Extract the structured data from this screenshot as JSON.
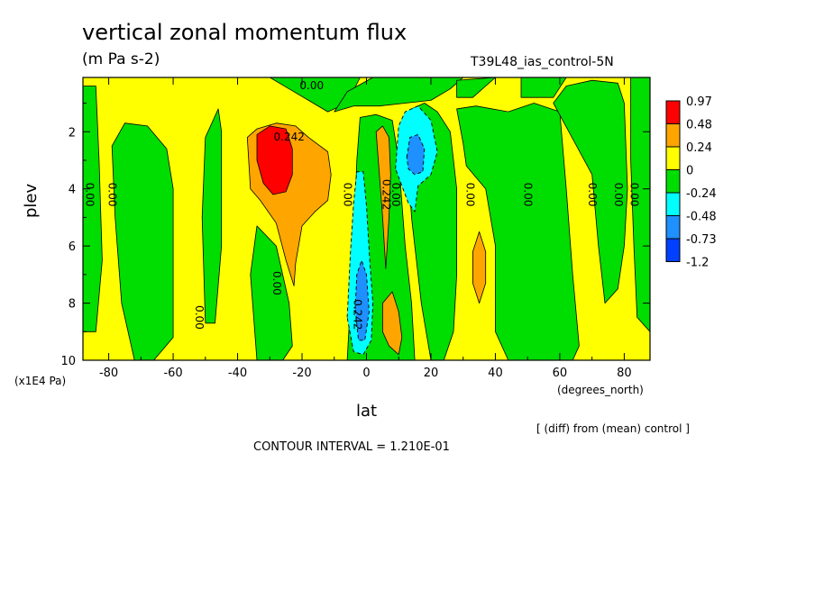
{
  "header": {
    "title": "vertical zonal momentum flux",
    "units": "(m Pa s-2)",
    "run_label": "T39L48_ias_control-5N"
  },
  "footer": {
    "note": "[ (diff) from (mean) control ]",
    "contour_interval": "CONTOUR INTERVAL = 1.210E-01"
  },
  "chart_data": {
    "type": "heatmap",
    "title": "vertical zonal momentum flux",
    "xlabel": "lat",
    "x_units": "(degrees_north)",
    "ylabel": "plev",
    "y_units": "(x1E4 Pa)",
    "xlim": [
      -88,
      88
    ],
    "ylim": [
      10,
      0.1
    ],
    "x_ticks": [
      -80,
      -60,
      -40,
      -20,
      0,
      20,
      40,
      60,
      80
    ],
    "x_tick_labels": [
      "-80",
      "-60",
      "-40",
      "-20",
      "0",
      "20",
      "40",
      "60",
      "80"
    ],
    "y_ticks": [
      2,
      4,
      6,
      8,
      10
    ],
    "y_tick_labels": [
      "2",
      "4",
      "6",
      "8",
      "10"
    ],
    "colorbar": {
      "labels": [
        "0.97",
        "0.48",
        "0.24",
        "0",
        "-0.24",
        "-0.48",
        "-0.73",
        "-1.2"
      ],
      "colors": [
        "#ff0000",
        "#ffa500",
        "#ffff00",
        "#00dd00",
        "#00ffff",
        "#1e90ff",
        "#0040ff"
      ]
    },
    "background_level_color": "#ffff00",
    "regions": [
      {
        "level": 0,
        "color": "#00dd00",
        "outline": [
          [
            -88,
            9
          ],
          [
            -84,
            9
          ],
          [
            -82,
            6.5
          ],
          [
            -83,
            3
          ],
          [
            -84,
            0.4
          ],
          [
            -88,
            0.4
          ]
        ]
      },
      {
        "level": 0,
        "color": "#00dd00",
        "outline": [
          [
            -72,
            10
          ],
          [
            -76,
            8
          ],
          [
            -78,
            5
          ],
          [
            -79,
            2.5
          ],
          [
            -75,
            1.7
          ],
          [
            -68,
            1.8
          ],
          [
            -62,
            2.6
          ],
          [
            -60,
            4
          ],
          [
            -60,
            6
          ],
          [
            -60,
            9.2
          ],
          [
            -66,
            10
          ]
        ]
      },
      {
        "level": 0,
        "color": "#00dd00",
        "outline": [
          [
            -50,
            8.7
          ],
          [
            -51,
            5
          ],
          [
            -50,
            2.2
          ],
          [
            -46,
            1.2
          ],
          [
            -45,
            2
          ],
          [
            -45,
            6
          ],
          [
            -47,
            8.7
          ]
        ]
      },
      {
        "level": 0,
        "color": "#00dd00",
        "outline": [
          [
            -34,
            10
          ],
          [
            -36,
            7
          ],
          [
            -34,
            5.3
          ],
          [
            -28,
            6
          ],
          [
            -24,
            8
          ],
          [
            -23,
            9.5
          ],
          [
            -26,
            10
          ]
        ]
      },
      {
        "level": 0,
        "color": "#00dd00",
        "outline": [
          [
            -24,
            0.5
          ],
          [
            -18,
            0.9
          ],
          [
            -12,
            1.3
          ],
          [
            -6,
            1.0
          ],
          [
            -2,
            0.1
          ],
          [
            -30,
            0.1
          ]
        ]
      },
      {
        "level": 0,
        "color": "#00dd00",
        "outline": [
          [
            -10,
            1.3
          ],
          [
            -4,
            1.1
          ],
          [
            4,
            1.1
          ],
          [
            12,
            1.0
          ],
          [
            20,
            0.9
          ],
          [
            26,
            0.5
          ],
          [
            30,
            0.1
          ],
          [
            2,
            0.1
          ],
          [
            -6,
            0.6
          ]
        ]
      },
      {
        "level": 0,
        "color": "#00dd00",
        "outline": [
          [
            -6,
            10
          ],
          [
            -4,
            6
          ],
          [
            -3,
            3
          ],
          [
            -2,
            1.5
          ],
          [
            3,
            1.4
          ],
          [
            8,
            1.6
          ],
          [
            10,
            3
          ],
          [
            12,
            6
          ],
          [
            14,
            8
          ],
          [
            15,
            10
          ]
        ]
      },
      {
        "level": 0,
        "color": "#00dd00",
        "outline": [
          [
            12,
            1.6
          ],
          [
            14,
            1.2
          ],
          [
            18,
            1.0
          ],
          [
            22,
            1.3
          ],
          [
            26,
            2
          ],
          [
            28,
            4
          ],
          [
            28,
            7
          ],
          [
            27,
            9
          ],
          [
            24,
            10
          ],
          [
            20,
            10
          ],
          [
            17,
            8
          ],
          [
            14,
            5
          ]
        ]
      },
      {
        "level": 0,
        "color": "#00dd00",
        "outline": [
          [
            28,
            1.2
          ],
          [
            34,
            1.1
          ],
          [
            44,
            1.3
          ],
          [
            52,
            1.0
          ],
          [
            60,
            1.3
          ],
          [
            62,
            4
          ],
          [
            64,
            7
          ],
          [
            66,
            9.5
          ],
          [
            64,
            10
          ],
          [
            44,
            10
          ],
          [
            40,
            9
          ],
          [
            40,
            6
          ],
          [
            37,
            4
          ],
          [
            31,
            3.2
          ],
          [
            30,
            2.4
          ]
        ]
      },
      {
        "level": 0,
        "color": "#00dd00",
        "outline": [
          [
            28,
            0.2
          ],
          [
            40,
            0.1
          ],
          [
            33,
            0.8
          ],
          [
            28,
            0.8
          ]
        ]
      },
      {
        "level": 0,
        "color": "#00dd00",
        "outline": [
          [
            48,
            0.1
          ],
          [
            62,
            0.1
          ],
          [
            58,
            0.8
          ],
          [
            48,
            0.8
          ]
        ]
      },
      {
        "level": 0,
        "color": "#00dd00",
        "outline": [
          [
            58,
            1.0
          ],
          [
            62,
            0.4
          ],
          [
            70,
            0.2
          ],
          [
            78,
            0.3
          ],
          [
            80,
            1.0
          ],
          [
            81,
            4
          ],
          [
            80,
            6
          ],
          [
            78,
            7.5
          ],
          [
            74,
            8
          ],
          [
            72,
            6
          ],
          [
            70,
            3.5
          ]
        ]
      },
      {
        "level": 0,
        "color": "#00dd00",
        "outline": [
          [
            82,
            0.1
          ],
          [
            88,
            0.1
          ],
          [
            88,
            9
          ],
          [
            84,
            8.5
          ],
          [
            83,
            6
          ],
          [
            82,
            3
          ]
        ]
      },
      {
        "level": 0.24,
        "color": "#ffa500",
        "outline": [
          [
            -37,
            2.2
          ],
          [
            -34,
            1.9
          ],
          [
            -28,
            1.7
          ],
          [
            -22,
            1.8
          ],
          [
            -18,
            2.2
          ],
          [
            -12,
            2.7
          ],
          [
            -11,
            3.5
          ],
          [
            -12,
            4.4
          ],
          [
            -16,
            4.8
          ],
          [
            -20,
            5.3
          ],
          [
            -22,
            6.6
          ],
          [
            -22.5,
            7.4
          ],
          [
            -25,
            6.5
          ],
          [
            -28,
            5.2
          ],
          [
            -33,
            4.4
          ],
          [
            -36,
            4
          ]
        ]
      },
      {
        "level": 0.48,
        "color": "#ff0000",
        "outline": [
          [
            -34,
            2.1
          ],
          [
            -30,
            1.8
          ],
          [
            -25,
            1.9
          ],
          [
            -23,
            2.6
          ],
          [
            -23,
            3.5
          ],
          [
            -25,
            4.1
          ],
          [
            -29,
            4.2
          ],
          [
            -32,
            3.8
          ],
          [
            -34,
            3
          ]
        ]
      },
      {
        "level": 0.24,
        "color": "#ffa500",
        "outline": [
          [
            3,
            2.0
          ],
          [
            5,
            1.8
          ],
          [
            7,
            2.2
          ],
          [
            7.5,
            3.5
          ],
          [
            7,
            5
          ],
          [
            6,
            6.8
          ],
          [
            5,
            5
          ],
          [
            4,
            3.5
          ]
        ]
      },
      {
        "level": 0.24,
        "color": "#ffa500",
        "outline": [
          [
            5,
            8
          ],
          [
            8,
            7.6
          ],
          [
            10,
            8.3
          ],
          [
            11,
            9.2
          ],
          [
            10,
            9.8
          ],
          [
            7,
            9.5
          ],
          [
            5,
            9
          ]
        ]
      },
      {
        "level": 0.24,
        "color": "#ffa500",
        "outline": [
          [
            33,
            6.2
          ],
          [
            35,
            5.5
          ],
          [
            37,
            6.2
          ],
          [
            37,
            7.3
          ],
          [
            35,
            8
          ],
          [
            33,
            7.3
          ]
        ]
      },
      {
        "level": -0.24,
        "color": "#00ffff",
        "outline": [
          [
            -6,
            8.5
          ],
          [
            -5,
            6.3
          ],
          [
            -4,
            4.5
          ],
          [
            -3,
            3.4
          ],
          [
            -1,
            3.4
          ],
          [
            0,
            4.6
          ],
          [
            1,
            6.5
          ],
          [
            2,
            8
          ],
          [
            1.5,
            9.3
          ],
          [
            -1,
            9.8
          ],
          [
            -4,
            9.7
          ]
        ]
      },
      {
        "level": -0.48,
        "color": "#1e90ff",
        "outline": [
          [
            -3.5,
            8.2
          ],
          [
            -3,
            7
          ],
          [
            -1.5,
            6.5
          ],
          [
            0,
            7
          ],
          [
            0.8,
            8.3
          ],
          [
            -0.5,
            9.3
          ],
          [
            -2.5,
            9.3
          ]
        ]
      },
      {
        "level": -0.24,
        "color": "#00ffff",
        "outline": [
          [
            9,
            3.3
          ],
          [
            10,
            1.8
          ],
          [
            12,
            1.3
          ],
          [
            16,
            1.1
          ],
          [
            20,
            1.6
          ],
          [
            22,
            2.7
          ],
          [
            20,
            3.5
          ],
          [
            16,
            3.9
          ],
          [
            15,
            4.8
          ],
          [
            13,
            4.5
          ],
          [
            11,
            3.9
          ]
        ]
      },
      {
        "level": -0.48,
        "color": "#1e90ff",
        "outline": [
          [
            12.5,
            2.9
          ],
          [
            13.5,
            2.2
          ],
          [
            16,
            2.1
          ],
          [
            18,
            2.6
          ],
          [
            17.5,
            3.4
          ],
          [
            15,
            3.5
          ],
          [
            13,
            3.3
          ]
        ]
      }
    ],
    "contour_labels": [
      {
        "text": "0.00",
        "x": -86,
        "y": 4.2,
        "rotated": true
      },
      {
        "text": "0.00",
        "x": -79,
        "y": 4.2,
        "rotated": true
      },
      {
        "text": "0.00",
        "x": -52,
        "y": 8.5,
        "rotated": true
      },
      {
        "text": "0.00",
        "x": -28,
        "y": 7.3,
        "rotated": true
      },
      {
        "text": "0.242",
        "x": -24,
        "y": 2.2,
        "rotated": false
      },
      {
        "text": "0.00",
        "x": -17,
        "y": 0.4,
        "rotated": false
      },
      {
        "text": "0.00",
        "x": -6,
        "y": 4.2,
        "rotated": true
      },
      {
        "text": "0.242",
        "x": 6,
        "y": 4.2,
        "rotated": true
      },
      {
        "text": "0.00",
        "x": 9,
        "y": 4.2,
        "rotated": true
      },
      {
        "text": "0.242",
        "x": -3,
        "y": 8.4,
        "rotated": true
      },
      {
        "text": "0.00",
        "x": 32,
        "y": 4.2,
        "rotated": true
      },
      {
        "text": "0.00",
        "x": 50,
        "y": 4.2,
        "rotated": true
      },
      {
        "text": "0.00",
        "x": 70,
        "y": 4.2,
        "rotated": true
      },
      {
        "text": "0.00",
        "x": 78,
        "y": 4.2,
        "rotated": true
      },
      {
        "text": "0.00",
        "x": 83,
        "y": 4.2,
        "rotated": true
      }
    ]
  }
}
